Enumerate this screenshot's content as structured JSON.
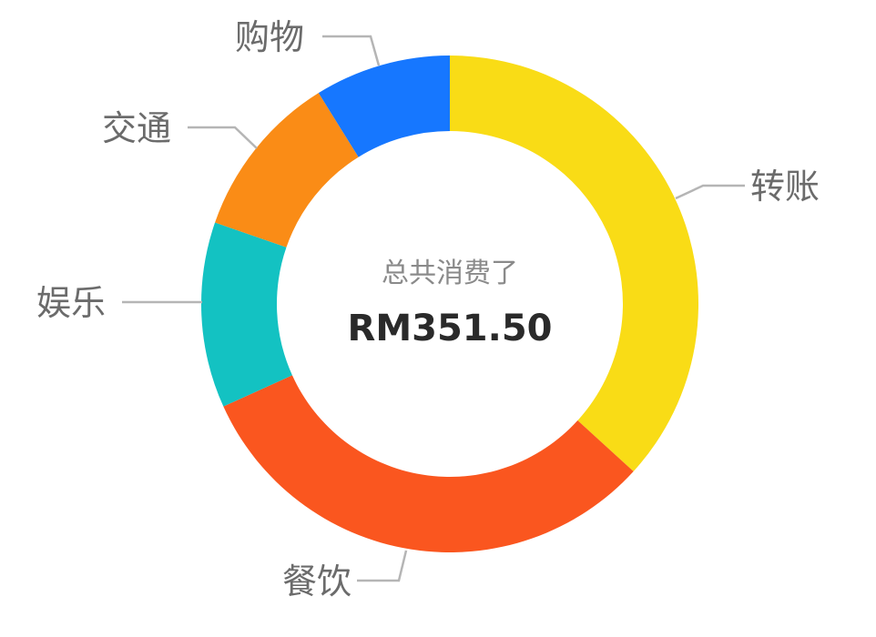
{
  "chart_data": {
    "type": "pie",
    "variant": "donut",
    "center": {
      "caption": "总共消费了",
      "total": "RM351.50"
    },
    "slices": [
      {
        "label": "转账",
        "value": 35.3,
        "color": "#F9DC16"
      },
      {
        "label": "餐饮",
        "value": 30.2,
        "color": "#FA561F"
      },
      {
        "label": "娱乐",
        "value": 11.6,
        "color": "#13C2C2"
      },
      {
        "label": "交通",
        "value": 10.4,
        "color": "#FA8C16"
      },
      {
        "label": "购物",
        "value": 8.5,
        "color": "#1677FF"
      }
    ],
    "legend": "none",
    "labels_outside": true
  }
}
